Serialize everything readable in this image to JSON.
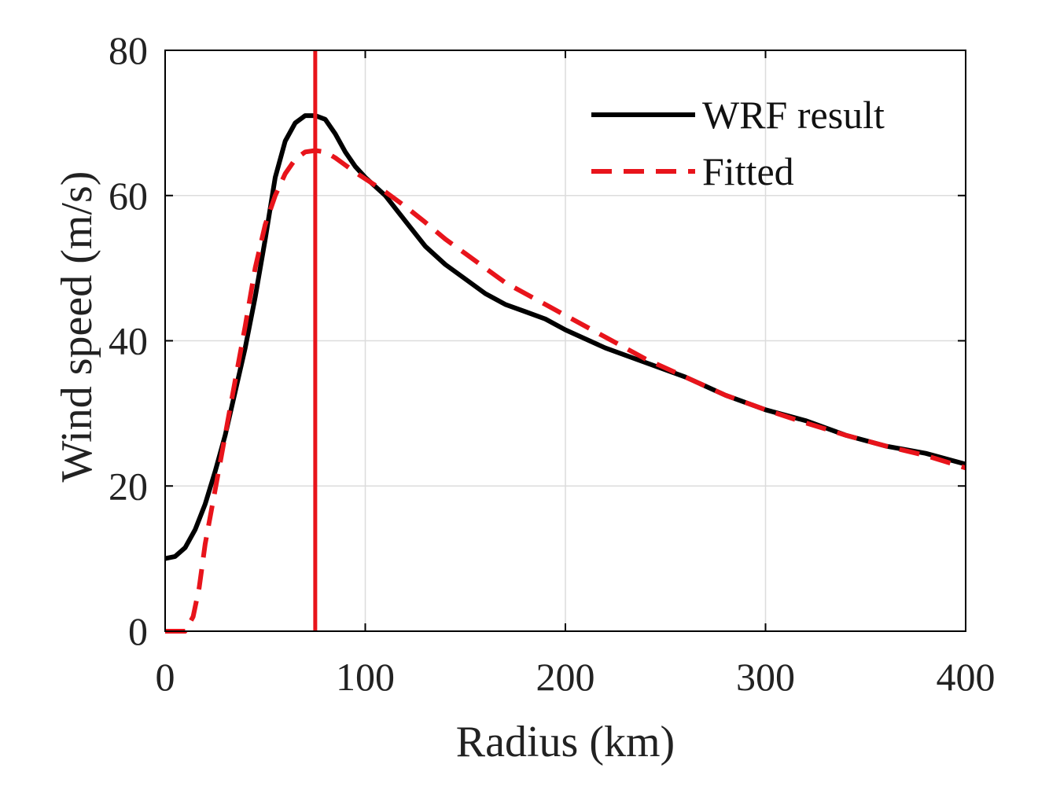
{
  "chart_data": {
    "type": "line",
    "title": "",
    "xlabel": "Radius (km)",
    "ylabel": "Wind speed (m/s)",
    "xlim": [
      0,
      400
    ],
    "ylim": [
      0,
      80
    ],
    "xticks": [
      0,
      100,
      200,
      300,
      400
    ],
    "yticks": [
      0,
      20,
      40,
      60,
      80
    ],
    "xtick_labels": [
      "0",
      "100",
      "200",
      "300",
      "400"
    ],
    "ytick_labels": [
      "0",
      "20",
      "40",
      "60",
      "80"
    ],
    "grid": true,
    "legend_position": "top-right",
    "series": [
      {
        "name": "WRF result",
        "style": "solid",
        "color": "#000000",
        "x": [
          0,
          5,
          10,
          15,
          20,
          25,
          30,
          35,
          40,
          45,
          50,
          55,
          60,
          65,
          70,
          75,
          80,
          85,
          90,
          95,
          100,
          110,
          120,
          130,
          140,
          150,
          160,
          170,
          180,
          190,
          200,
          220,
          240,
          260,
          280,
          300,
          320,
          340,
          360,
          380,
          400
        ],
        "y": [
          10,
          10.3,
          11.5,
          14,
          17.5,
          22,
          27,
          33,
          39,
          46,
          54,
          62.5,
          67.5,
          70,
          71,
          71,
          70.5,
          68.5,
          66,
          64,
          62.5,
          60,
          56.5,
          53,
          50.5,
          48.5,
          46.5,
          45,
          44,
          43,
          41.5,
          39,
          37,
          35,
          32.5,
          30.5,
          29,
          27,
          25.5,
          24.5,
          23
        ]
      },
      {
        "name": "Fitted",
        "style": "dashed",
        "color": "#e8141b",
        "x": [
          0,
          10,
          14,
          17,
          20,
          24,
          28,
          32,
          36,
          40,
          45,
          50,
          55,
          60,
          65,
          70,
          75,
          80,
          85,
          90,
          95,
          100,
          110,
          120,
          130,
          140,
          150,
          160,
          170,
          180,
          190,
          200,
          220,
          240,
          260,
          280,
          300,
          320,
          340,
          360,
          380,
          400
        ],
        "y": [
          0,
          0,
          2,
          6,
          12,
          18,
          24,
          30,
          36,
          42,
          50,
          56,
          60,
          63,
          65,
          66,
          66.2,
          66,
          65.2,
          64.2,
          63.2,
          62.3,
          60.5,
          58.5,
          56.3,
          54,
          52,
          50,
          48,
          46.5,
          45,
          43.5,
          40.5,
          37.5,
          35,
          32.5,
          30.5,
          28.7,
          27,
          25.5,
          24.2,
          22.5
        ]
      }
    ],
    "reference_line": {
      "orientation": "vertical",
      "x": 75,
      "color": "#e8141b"
    }
  }
}
